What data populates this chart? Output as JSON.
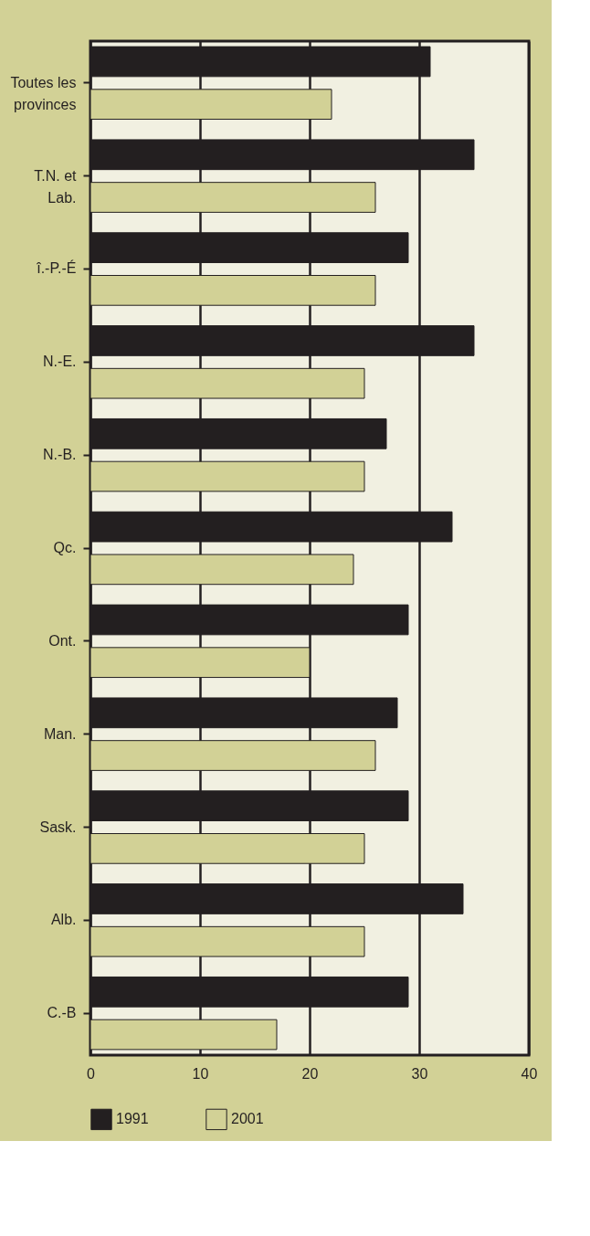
{
  "chart_data": {
    "type": "bar",
    "orientation": "horizontal",
    "categories": [
      "Toutes les provinces",
      "T.N. et Lab.",
      "î.-P.-É",
      "N.-E.",
      "N.-B.",
      "Qc.",
      "Ont.",
      "Man.",
      "Sask.",
      "Alb.",
      "C.-B"
    ],
    "series": [
      {
        "name": "1991",
        "color": "#231f20",
        "values": [
          31,
          35,
          29,
          35,
          27,
          33,
          29,
          28,
          29,
          34,
          29
        ]
      },
      {
        "name": "2001",
        "color": "#d2d196",
        "values": [
          22,
          26,
          26,
          25,
          25,
          24,
          20,
          26,
          25,
          25,
          17
        ]
      }
    ],
    "xlim": [
      0,
      40
    ],
    "xticks": [
      0,
      10,
      20,
      30,
      40
    ],
    "grid": "x",
    "legend": "bottom"
  }
}
